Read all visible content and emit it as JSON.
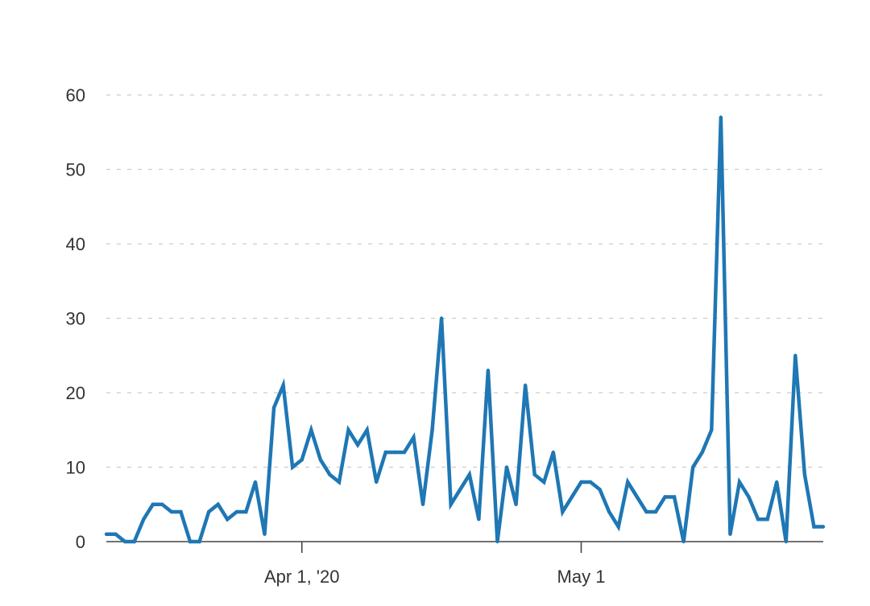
{
  "chart_data": {
    "type": "line",
    "title": "",
    "xlabel": "",
    "ylabel": "",
    "ylim": [
      0,
      60
    ],
    "xlim": [
      "2020-03-11",
      "2020-05-27"
    ],
    "grid": true,
    "y_ticks": [
      0,
      10,
      20,
      30,
      40,
      50,
      60
    ],
    "y_tick_labels": [
      "0",
      "10",
      "20",
      "30",
      "40",
      "50",
      "60"
    ],
    "x_ticks": [
      {
        "date": "2020-04-01",
        "label": "Apr 1, '20"
      },
      {
        "date": "2020-05-01",
        "label": "May 1"
      }
    ],
    "colors": {
      "line": "#1f77b4"
    },
    "series": [
      {
        "x": [
          "2020-03-11",
          "2020-03-12",
          "2020-03-13",
          "2020-03-14",
          "2020-03-15",
          "2020-03-16",
          "2020-03-17",
          "2020-03-18",
          "2020-03-19",
          "2020-03-20",
          "2020-03-21",
          "2020-03-22",
          "2020-03-23",
          "2020-03-24",
          "2020-03-25",
          "2020-03-26",
          "2020-03-27",
          "2020-03-28",
          "2020-03-29",
          "2020-03-30",
          "2020-03-31",
          "2020-04-01",
          "2020-04-02",
          "2020-04-03",
          "2020-04-04",
          "2020-04-05",
          "2020-04-06",
          "2020-04-07",
          "2020-04-08",
          "2020-04-09",
          "2020-04-10",
          "2020-04-11",
          "2020-04-12",
          "2020-04-13",
          "2020-04-14",
          "2020-04-15",
          "2020-04-16",
          "2020-04-17",
          "2020-04-18",
          "2020-04-19",
          "2020-04-20",
          "2020-04-21",
          "2020-04-22",
          "2020-04-23",
          "2020-04-24",
          "2020-04-25",
          "2020-04-26",
          "2020-04-27",
          "2020-04-28",
          "2020-04-29",
          "2020-04-30",
          "2020-05-01",
          "2020-05-02",
          "2020-05-03",
          "2020-05-04",
          "2020-05-05",
          "2020-05-06",
          "2020-05-07",
          "2020-05-08",
          "2020-05-09",
          "2020-05-10",
          "2020-05-11",
          "2020-05-12",
          "2020-05-13",
          "2020-05-14",
          "2020-05-15",
          "2020-05-16",
          "2020-05-17",
          "2020-05-18",
          "2020-05-19",
          "2020-05-20",
          "2020-05-21",
          "2020-05-22",
          "2020-05-23",
          "2020-05-24",
          "2020-05-25",
          "2020-05-26",
          "2020-05-27"
        ],
        "values": [
          1,
          1,
          0,
          0,
          3,
          5,
          5,
          4,
          4,
          0,
          0,
          4,
          5,
          3,
          4,
          4,
          8,
          1,
          18,
          21,
          10,
          11,
          15,
          11,
          9,
          8,
          15,
          13,
          15,
          8,
          12,
          12,
          12,
          14,
          5,
          15,
          30,
          5,
          7,
          9,
          3,
          23,
          0,
          10,
          5,
          21,
          9,
          8,
          12,
          4,
          6,
          8,
          8,
          7,
          4,
          2,
          8,
          6,
          4,
          4,
          6,
          6,
          0,
          10,
          12,
          15,
          57,
          1,
          8,
          6,
          3,
          3,
          8,
          0,
          25,
          9,
          2,
          2
        ]
      }
    ]
  }
}
